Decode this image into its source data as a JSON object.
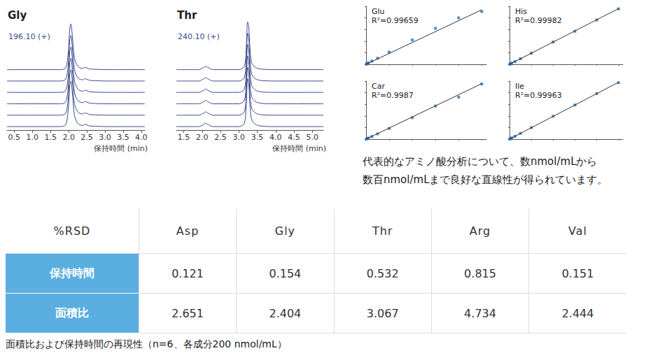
{
  "chart_data": [
    {
      "type": "line",
      "title": "Gly",
      "annotation": "196.10 (+)",
      "x_label": "保持時間 (min)",
      "color": "#3b4a8c",
      "tick_labels": "x",
      "xlim": [
        0.3,
        4.1
      ],
      "xticks": [
        0.5,
        {
          "value": 1,
          "label": "1.0"
        },
        1.5,
        {
          "value": 2,
          "label": "2.0"
        },
        2.5,
        {
          "value": 3,
          "label": "3.0"
        },
        3.5,
        {
          "value": 4,
          "label": "4.0"
        }
      ],
      "ylim": [
        0,
        100
      ],
      "x": [
        0.3,
        1.0,
        1.7,
        1.9,
        1.98,
        2.03,
        2.06,
        2.1,
        2.16,
        2.25,
        2.38,
        2.45,
        2.5,
        2.6,
        3.2,
        4.1
      ],
      "series": [
        {
          "values": [
            3,
            3,
            3,
            4,
            15,
            39,
            43,
            33,
            13,
            6,
            4,
            5,
            4.5,
            3.5,
            3,
            3
          ]
        },
        {
          "values": [
            13,
            13,
            13,
            14,
            25,
            49,
            53,
            43,
            23,
            16,
            14,
            15,
            14.5,
            13.5,
            13,
            13
          ]
        },
        {
          "values": [
            23,
            23,
            23,
            24,
            35,
            59,
            63,
            53,
            33,
            26,
            24,
            25,
            24.5,
            23.5,
            23,
            23
          ]
        },
        {
          "values": [
            33,
            33,
            33,
            34,
            45,
            69,
            73,
            63,
            43,
            36,
            34,
            35,
            34.5,
            33.5,
            33,
            33
          ]
        },
        {
          "values": [
            43,
            43,
            43,
            44,
            55,
            79,
            83,
            73,
            53,
            46,
            44,
            45,
            44.5,
            43.5,
            43,
            43
          ]
        },
        {
          "values": [
            53,
            53,
            53,
            54,
            65,
            89,
            93,
            83,
            63,
            56,
            54,
            55,
            54.5,
            53.5,
            53,
            53
          ]
        }
      ]
    },
    {
      "type": "line",
      "title": "Thr",
      "annotation": "240.10 (+)",
      "x_label": "保持時間 (min)",
      "color": "#3b4a8c",
      "tick_labels": "x",
      "xlim": [
        1.3,
        5.3
      ],
      "xticks": [
        1.5,
        {
          "value": 2,
          "label": "2.0"
        },
        2.5,
        {
          "value": 3,
          "label": "3.0"
        },
        3.5,
        {
          "value": 4,
          "label": "4.0"
        },
        4.5,
        {
          "value": 5,
          "label": "5.0"
        }
      ],
      "ylim": [
        0,
        100
      ],
      "x": [
        1.3,
        1.9,
        2.05,
        2.1,
        2.15,
        2.3,
        3.0,
        3.15,
        3.2,
        3.24,
        3.27,
        3.3,
        3.35,
        3.45,
        3.6,
        4.0,
        5.3
      ],
      "series": [
        {
          "values": [
            3,
            3,
            5,
            6,
            5,
            3,
            3,
            6,
            21,
            45,
            41,
            23,
            9,
            5,
            3.5,
            3,
            3
          ]
        },
        {
          "values": [
            13,
            13,
            15,
            16,
            15,
            13,
            13,
            16,
            31,
            55,
            51,
            33,
            19,
            15,
            13.5,
            13,
            13
          ]
        },
        {
          "values": [
            23,
            23,
            25,
            26,
            25,
            23,
            23,
            26,
            41,
            65,
            61,
            43,
            29,
            25,
            23.5,
            23,
            23
          ]
        },
        {
          "values": [
            33,
            33,
            35,
            36,
            35,
            33,
            33,
            36,
            51,
            75,
            71,
            53,
            39,
            35,
            33.5,
            33,
            33
          ]
        },
        {
          "values": [
            43,
            43,
            45,
            46,
            45,
            43,
            43,
            46,
            61,
            85,
            81,
            63,
            49,
            45,
            43.5,
            43,
            43
          ]
        },
        {
          "values": [
            53,
            53,
            55,
            56,
            55,
            53,
            53,
            56,
            71,
            95,
            91,
            73,
            59,
            55,
            53.5,
            53,
            53
          ]
        }
      ]
    },
    {
      "type": "scatter",
      "title": "Glu",
      "annotation": "R²=0.99659",
      "color": "#2a6ebb",
      "marker": "square",
      "tick_labels": false,
      "xlim": [
        0,
        520
      ],
      "xticks": [
        0,
        100,
        200,
        300,
        400,
        500
      ],
      "ylim": [
        0,
        500
      ],
      "yticks": [
        0,
        100,
        200,
        300,
        400,
        500
      ],
      "x": [
        1,
        5,
        10,
        25,
        50,
        100,
        200,
        300,
        400,
        500
      ],
      "values": [
        2,
        6,
        12,
        28,
        52,
        105,
        210,
        310,
        400,
        455
      ],
      "fit": {
        "x": [
          0,
          500
        ],
        "values": [
          0,
          470
        ]
      }
    },
    {
      "type": "scatter",
      "title": "His",
      "annotation": "R²=0.99982",
      "color": "#2a6ebb",
      "marker": "square",
      "tick_labels": false,
      "xlim": [
        0,
        520
      ],
      "xticks": [
        0,
        100,
        200,
        300,
        400,
        500
      ],
      "ylim": [
        0,
        500
      ],
      "yticks": [
        0,
        100,
        200,
        300,
        400,
        500
      ],
      "x": [
        1,
        5,
        10,
        25,
        50,
        100,
        200,
        300,
        400,
        500
      ],
      "values": [
        1,
        5,
        10,
        24,
        48,
        96,
        192,
        285,
        382,
        478
      ],
      "fit": {
        "x": [
          0,
          500
        ],
        "values": [
          0,
          480
        ]
      }
    },
    {
      "type": "scatter",
      "title": "Car",
      "annotation": "R²=0.9987",
      "color": "#2a6ebb",
      "marker": "square",
      "tick_labels": false,
      "xlim": [
        0,
        520
      ],
      "xticks": [
        0,
        100,
        200,
        300,
        400,
        500
      ],
      "ylim": [
        0,
        500
      ],
      "yticks": [
        0,
        100,
        200,
        300,
        400,
        500
      ],
      "x": [
        1,
        5,
        10,
        25,
        50,
        100,
        200,
        300,
        400,
        500
      ],
      "values": [
        1,
        4,
        9,
        22,
        45,
        92,
        185,
        285,
        362,
        475
      ],
      "fit": {
        "x": [
          0,
          500
        ],
        "values": [
          0,
          478
        ]
      }
    },
    {
      "type": "scatter",
      "title": "Ile",
      "annotation": "R²=0.99963",
      "color": "#2a6ebb",
      "marker": "square",
      "tick_labels": false,
      "xlim": [
        0,
        520
      ],
      "xticks": [
        0,
        100,
        200,
        300,
        400,
        500
      ],
      "ylim": [
        0,
        500
      ],
      "yticks": [
        0,
        100,
        200,
        300,
        400,
        500
      ],
      "x": [
        1,
        5,
        10,
        25,
        50,
        100,
        200,
        300,
        400,
        500
      ],
      "values": [
        1,
        5,
        10,
        24,
        49,
        99,
        197,
        294,
        392,
        486
      ],
      "fit": {
        "x": [
          0,
          500
        ],
        "values": [
          0,
          490
        ]
      }
    }
  ],
  "note": {
    "lines": [
      "代表的なアミノ酸分析について、数nmol/mLから",
      "数百nmol/mLまで良好な直線性が得られています。"
    ]
  },
  "table": {
    "header": [
      "%RSD",
      "Asp",
      "Gly",
      "Thr",
      "Arg",
      "Val"
    ],
    "rows": [
      [
        "保持時間",
        "0.121",
        "0.154",
        "0.532",
        "0.815",
        "0.151"
      ],
      [
        "面積比",
        "2.651",
        "2.404",
        "3.067",
        "4.734",
        "2.444"
      ]
    ],
    "caption": "面積比および保持時間の再現性（n=6、各成分200 nmol/mL）"
  }
}
